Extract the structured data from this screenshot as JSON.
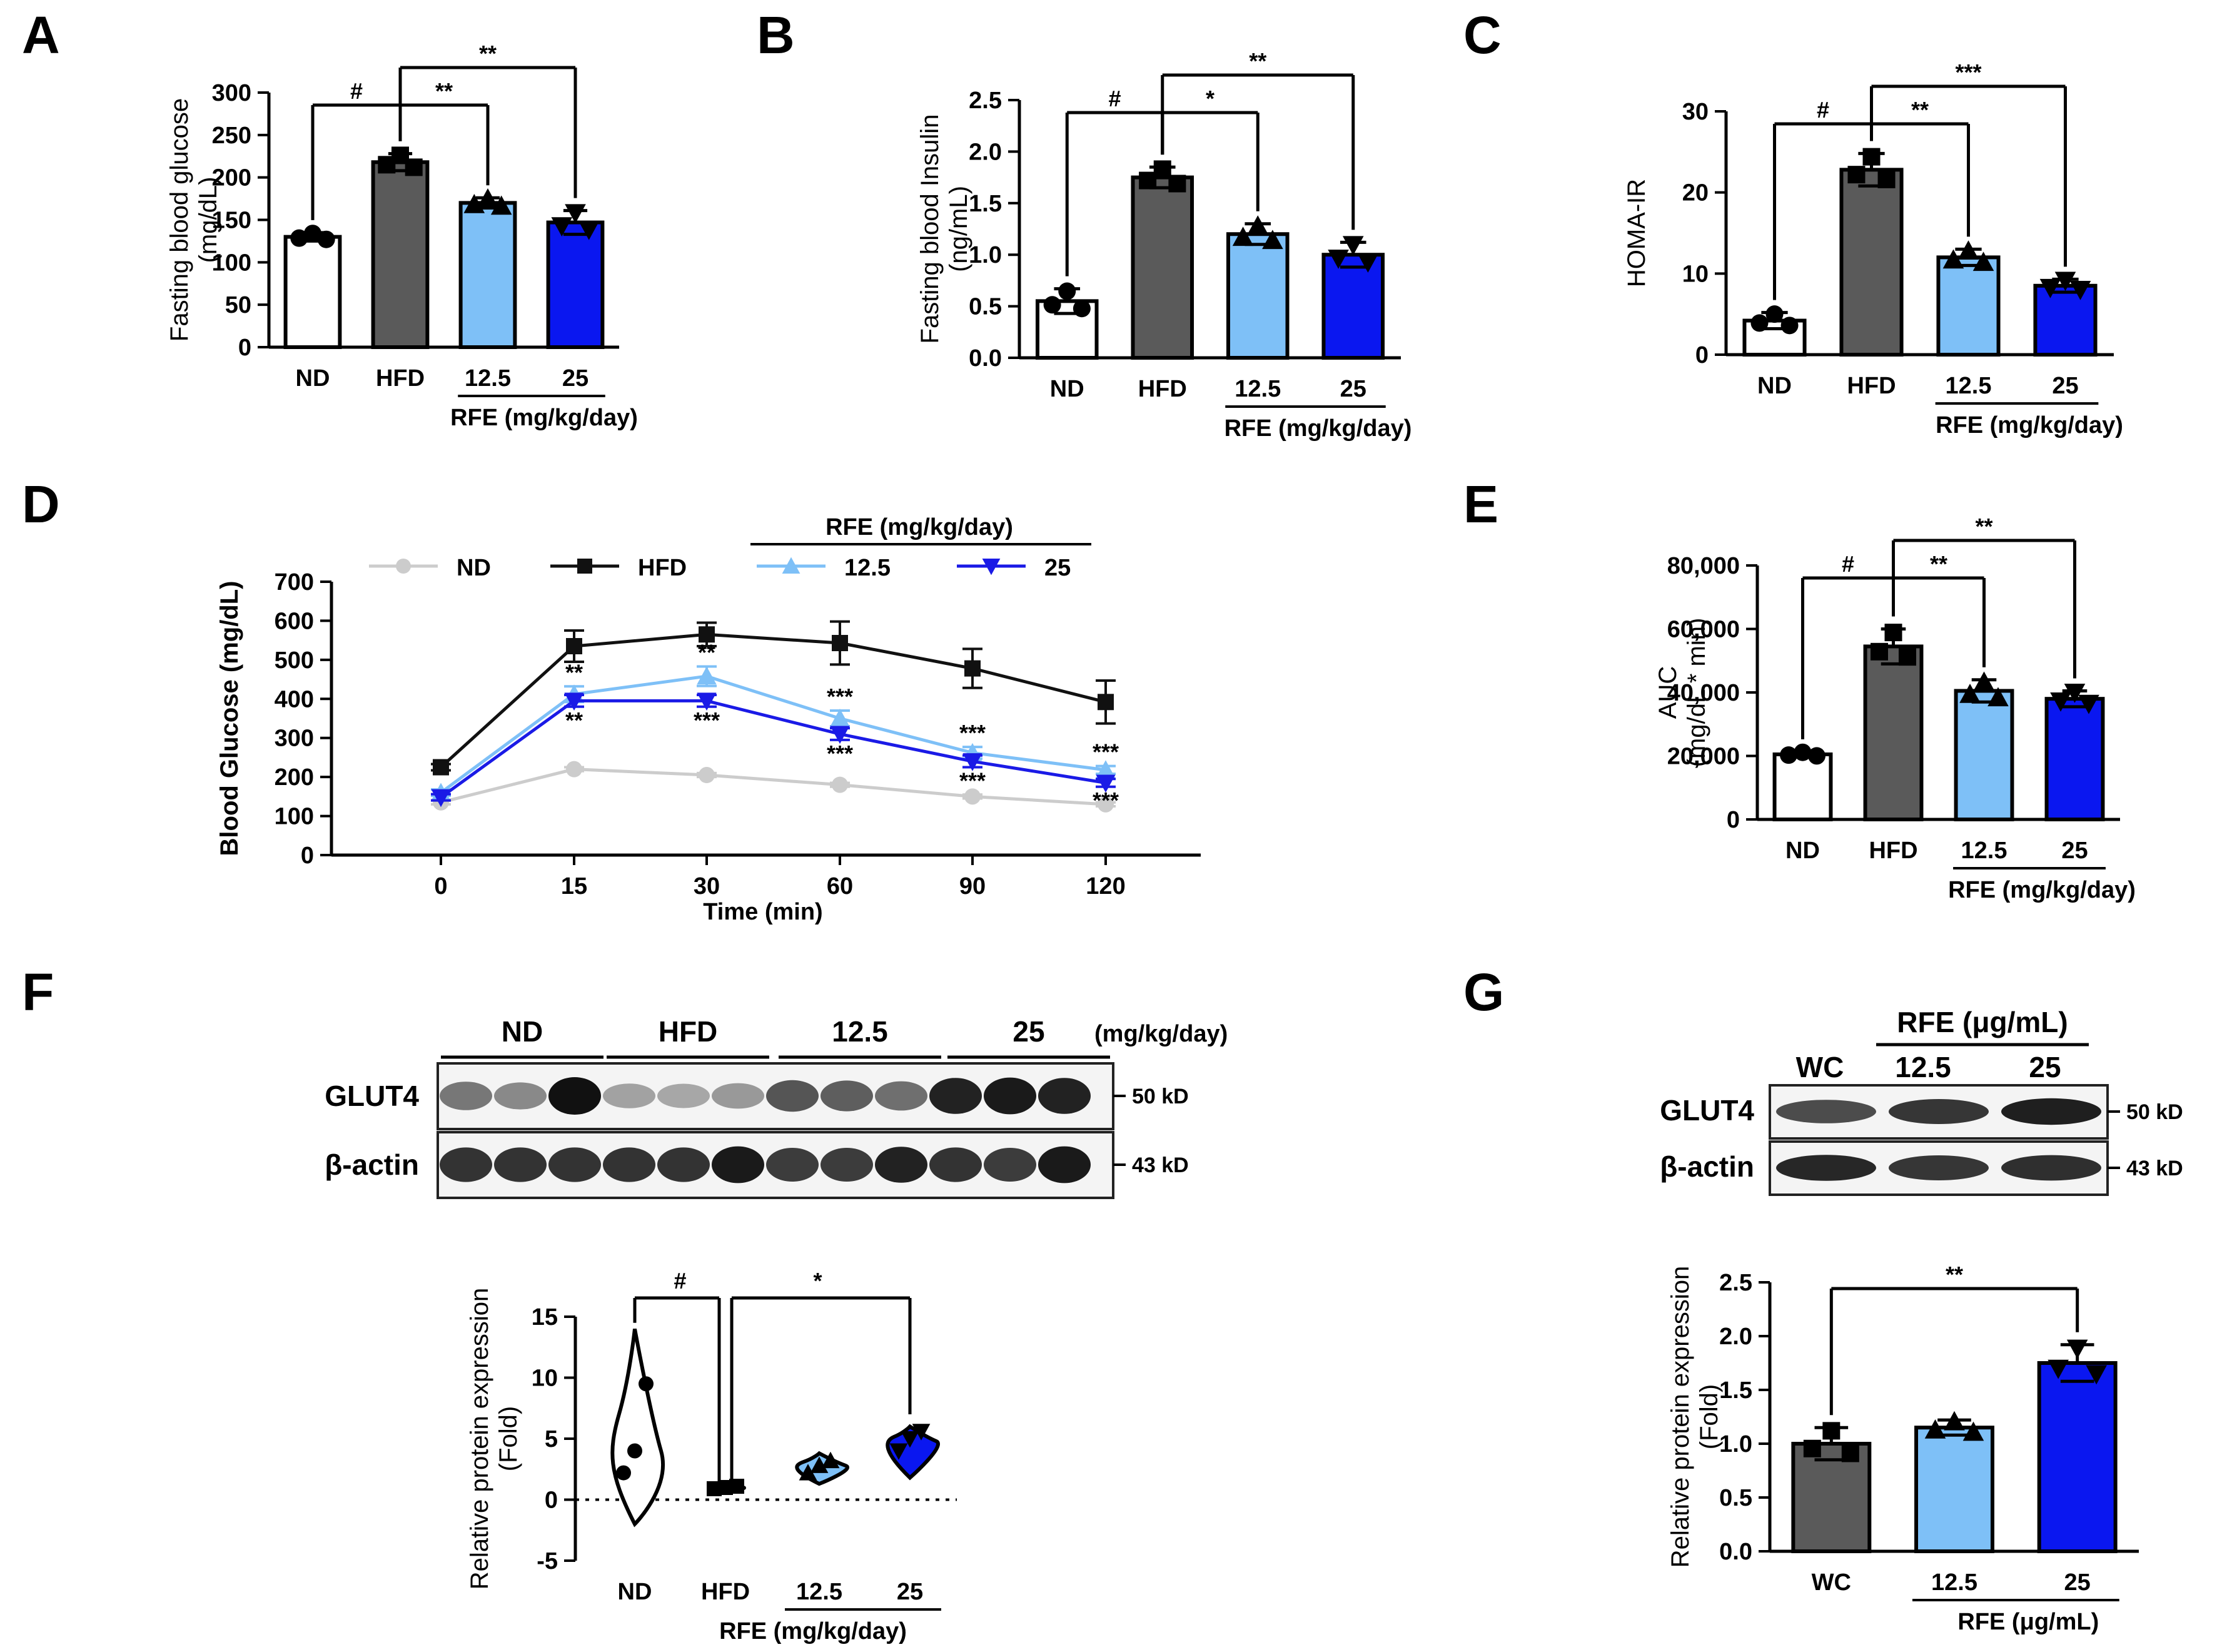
{
  "colors": {
    "ND": "#ffffff",
    "HFD": "#5a5a5a",
    "low": "#7ec0f7",
    "high": "#0a17f0",
    "nd_line": "#cccccc",
    "hfd_line": "#111111",
    "low_line": "#7ec0f7",
    "high_line": "#1a1ae6"
  },
  "chart_data": [
    {
      "panel": "A",
      "type": "bar",
      "ylabel": "Fasting blood glucose (mg/dL)",
      "ylim": [
        0,
        300
      ],
      "yticks": [
        "0",
        "50",
        "100",
        "150",
        "200",
        "250",
        "300"
      ],
      "categories": [
        "ND",
        "HFD",
        "12.5",
        "25"
      ],
      "values": [
        130,
        218,
        170,
        147
      ],
      "errors": [
        5,
        10,
        6,
        14
      ],
      "group_label": "RFE (mg/kg/day)",
      "significance": [
        {
          "from": "ND",
          "to": "HFD",
          "label": "#"
        },
        {
          "from": "HFD",
          "to": "12.5",
          "label": "**"
        },
        {
          "from": "HFD",
          "to": "25",
          "label": "**"
        }
      ]
    },
    {
      "panel": "B",
      "type": "bar",
      "ylabel": "Fasting blood Insulin (ng/mL)",
      "ylim": [
        0,
        2.5
      ],
      "yticks": [
        "0.0",
        "0.5",
        "1.0",
        "1.5",
        "2.0",
        "2.5"
      ],
      "categories": [
        "ND",
        "HFD",
        "12.5",
        "25"
      ],
      "values": [
        0.55,
        1.75,
        1.2,
        1.0
      ],
      "errors": [
        0.12,
        0.1,
        0.1,
        0.12
      ],
      "group_label": "RFE (mg/kg/day)",
      "significance": [
        {
          "from": "ND",
          "to": "HFD",
          "label": "#"
        },
        {
          "from": "HFD",
          "to": "12.5",
          "label": "*"
        },
        {
          "from": "HFD",
          "to": "25",
          "label": "**"
        }
      ]
    },
    {
      "panel": "C",
      "type": "bar",
      "ylabel": "HOMA-IR",
      "ylim": [
        0,
        30
      ],
      "yticks": [
        "0",
        "10",
        "20",
        "30"
      ],
      "categories": [
        "ND",
        "HFD",
        "12.5",
        "25"
      ],
      "values": [
        4.2,
        22.8,
        12.0,
        8.5
      ],
      "errors": [
        1.0,
        2.0,
        1.0,
        0.8
      ],
      "group_label": "RFE (mg/kg/day)",
      "significance": [
        {
          "from": "ND",
          "to": "HFD",
          "label": "#"
        },
        {
          "from": "HFD",
          "to": "12.5",
          "label": "**"
        },
        {
          "from": "HFD",
          "to": "25",
          "label": "***"
        }
      ]
    },
    {
      "panel": "D",
      "type": "line",
      "ylabel": "Blood Glucose (mg/dL)",
      "xlabel": "Time (min)",
      "ylim": [
        0,
        700
      ],
      "yticks": [
        "0",
        "100",
        "200",
        "300",
        "400",
        "500",
        "600",
        "700"
      ],
      "x": [
        "0",
        "15",
        "30",
        "60",
        "90",
        "120"
      ],
      "legend_group": "RFE (mg/kg/day)",
      "series": [
        {
          "name": "ND",
          "values": [
            135,
            220,
            205,
            180,
            150,
            130
          ],
          "errors": [
            5,
            5,
            5,
            5,
            5,
            5
          ]
        },
        {
          "name": "HFD",
          "values": [
            225,
            535,
            565,
            543,
            478,
            392
          ],
          "errors": [
            8,
            40,
            30,
            55,
            50,
            55
          ]
        },
        {
          "name": "12.5",
          "values": [
            160,
            412,
            458,
            350,
            262,
            218
          ],
          "errors": [
            8,
            20,
            25,
            20,
            15,
            10
          ]
        },
        {
          "name": "25",
          "values": [
            148,
            395,
            395,
            310,
            240,
            185
          ],
          "errors": [
            8,
            15,
            15,
            15,
            15,
            10
          ]
        }
      ],
      "stars_low": [
        "",
        "**",
        "**",
        "***",
        "***",
        "***"
      ],
      "stars_high": [
        "",
        "**",
        "***",
        "***",
        "***",
        "***"
      ]
    },
    {
      "panel": "E",
      "type": "bar",
      "ylabel": "AUC (mg/dL * min)",
      "ylim": [
        0,
        80000
      ],
      "yticks": [
        "0",
        "20,000",
        "40,000",
        "60,000",
        "80,000"
      ],
      "categories": [
        "ND",
        "HFD",
        "12.5",
        "25"
      ],
      "values": [
        20500,
        54500,
        40500,
        38000
      ],
      "errors": [
        800,
        5500,
        3500,
        2500
      ],
      "group_label": "RFE (mg/kg/day)",
      "significance": [
        {
          "from": "ND",
          "to": "HFD",
          "label": "#"
        },
        {
          "from": "HFD",
          "to": "12.5",
          "label": "**"
        },
        {
          "from": "HFD",
          "to": "25",
          "label": "**"
        }
      ]
    },
    {
      "panel": "F",
      "type": "violin",
      "ylabel": "Relative protein expression (Fold)",
      "ylim": [
        -5,
        15
      ],
      "yticks": [
        "-5",
        "0",
        "5",
        "10",
        "15"
      ],
      "categories": [
        "ND",
        "HFD",
        "12.5",
        "25"
      ],
      "medians": [
        4.0,
        1.0,
        2.8,
        4.8
      ],
      "ranges": [
        [
          -2.0,
          14.0
        ],
        [
          0.7,
          1.2
        ],
        [
          1.3,
          3.8
        ],
        [
          1.8,
          6.0
        ]
      ],
      "points": [
        [
          2.2,
          4.0,
          9.5
        ],
        [
          0.9,
          1.0,
          1.1
        ],
        [
          2.2,
          2.8,
          3.2
        ],
        [
          4.0,
          5.0,
          5.6
        ]
      ],
      "group_label": "RFE (mg/kg/day)",
      "significance": [
        {
          "from": "ND",
          "to": "HFD",
          "label": "#"
        },
        {
          "from": "HFD",
          "to": "25",
          "label": "*"
        }
      ]
    },
    {
      "panel": "G",
      "type": "bar",
      "ylabel": "Relative protein expression (Fold)",
      "ylim": [
        0,
        2.5
      ],
      "yticks": [
        "0.0",
        "0.5",
        "1.0",
        "1.5",
        "2.0",
        "2.5"
      ],
      "categories": [
        "WC",
        "12.5",
        "25"
      ],
      "values": [
        1.0,
        1.15,
        1.75
      ],
      "errors": [
        0.15,
        0.07,
        0.17
      ],
      "group_label": "RFE (μg/mL)",
      "significance": [
        {
          "from": "WC",
          "to": "25",
          "label": "**"
        }
      ]
    }
  ],
  "panels": {
    "A": "A",
    "B": "B",
    "C": "C",
    "D": "D",
    "E": "E",
    "F": "F",
    "G": "G"
  },
  "blotF": {
    "groups": [
      "ND",
      "HFD",
      "12.5",
      "25"
    ],
    "unit": "(mg/kg/day)",
    "rows": [
      {
        "label": "GLUT4",
        "kd": "50 kD",
        "intensity": [
          0.4,
          0.3,
          1.0,
          0.15,
          0.12,
          0.2,
          0.6,
          0.55,
          0.45,
          0.9,
          0.95,
          0.9
        ]
      },
      {
        "label": "β-actin",
        "kd": "43 kD",
        "intensity": [
          0.8,
          0.8,
          0.8,
          0.8,
          0.8,
          0.95,
          0.75,
          0.75,
          0.9,
          0.8,
          0.75,
          0.95
        ]
      }
    ]
  },
  "blotG": {
    "header": "RFE (μg/mL)",
    "groups": [
      "WC",
      "12.5",
      "25"
    ],
    "rows": [
      {
        "label": "GLUT4",
        "kd": "50 kD",
        "intensity": [
          0.6,
          0.75,
          0.9
        ]
      },
      {
        "label": "β-actin",
        "kd": "43 kD",
        "intensity": [
          0.85,
          0.75,
          0.8
        ]
      }
    ]
  }
}
